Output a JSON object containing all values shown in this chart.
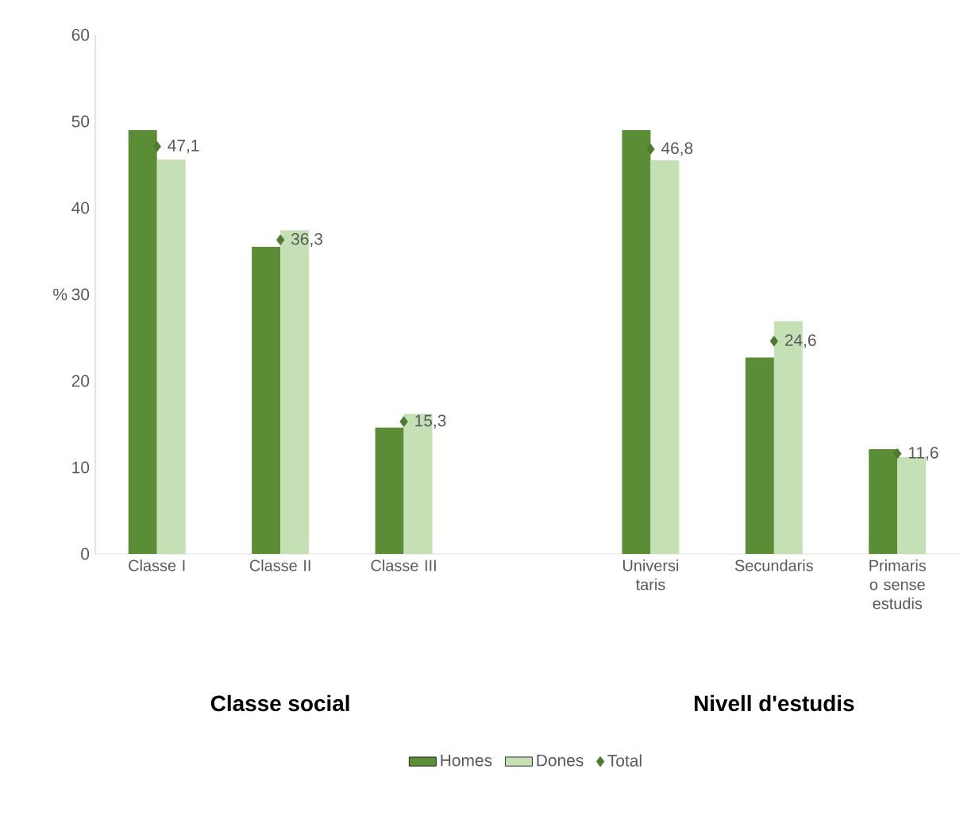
{
  "chart_data": {
    "type": "bar",
    "ylabel": "%",
    "categories": [
      "Classe I",
      "Classe II",
      "Classe III",
      null,
      "Universi taris",
      "Secundaris",
      "Primaris o sense estudis"
    ],
    "series": [
      {
        "name": "Homes",
        "color": "#5b8c36",
        "values": [
          49.0,
          35.5,
          14.6,
          null,
          49.0,
          22.7,
          12.1
        ]
      },
      {
        "name": "Dones",
        "color": "#c5e0b4",
        "values": [
          45.6,
          37.4,
          16.2,
          null,
          45.5,
          26.9,
          11.2
        ]
      },
      {
        "name": "Total",
        "type": "scatter",
        "color": "#4e7a2e",
        "marker": "diamond",
        "values": [
          47.1,
          36.3,
          15.3,
          null,
          46.8,
          24.6,
          11.6
        ],
        "value_labels": [
          "47,1",
          "36,3",
          "15,3",
          null,
          "46,8",
          "24,6",
          "11,6"
        ]
      }
    ],
    "ylim": [
      0,
      60
    ],
    "yticks": [
      0,
      10,
      20,
      30,
      40,
      50,
      60
    ],
    "grid": false,
    "legend": "bottom",
    "annotations": [
      "Classe social",
      "Nivell d'estudis"
    ]
  }
}
